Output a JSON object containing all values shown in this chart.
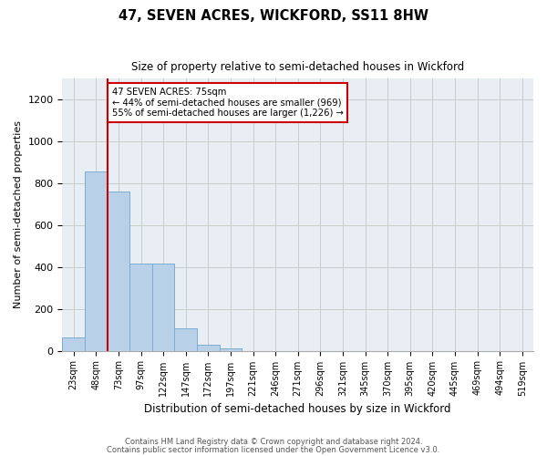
{
  "title": "47, SEVEN ACRES, WICKFORD, SS11 8HW",
  "subtitle": "Size of property relative to semi-detached houses in Wickford",
  "xlabel": "Distribution of semi-detached houses by size in Wickford",
  "ylabel": "Number of semi-detached properties",
  "categories": [
    "23sqm",
    "48sqm",
    "73sqm",
    "97sqm",
    "122sqm",
    "147sqm",
    "172sqm",
    "197sqm",
    "221sqm",
    "246sqm",
    "271sqm",
    "296sqm",
    "321sqm",
    "345sqm",
    "370sqm",
    "395sqm",
    "420sqm",
    "445sqm",
    "469sqm",
    "494sqm",
    "519sqm"
  ],
  "values": [
    65,
    855,
    760,
    415,
    415,
    105,
    28,
    12,
    0,
    0,
    0,
    0,
    0,
    0,
    0,
    0,
    0,
    0,
    0,
    0,
    0
  ],
  "bar_color": "#b8d0e8",
  "bar_edge_color": "#7aaed0",
  "annotation_text": "47 SEVEN ACRES: 75sqm\n← 44% of semi-detached houses are smaller (969)\n55% of semi-detached houses are larger (1,226) →",
  "annotation_box_color": "#ffffff",
  "annotation_box_edge": "#cc0000",
  "ylim": [
    0,
    1300
  ],
  "yticks": [
    0,
    200,
    400,
    600,
    800,
    1000,
    1200
  ],
  "grid_color": "#cccccc",
  "background_color": "#e8eef4",
  "footer1": "Contains HM Land Registry data © Crown copyright and database right 2024.",
  "footer2": "Contains public sector information licensed under the Open Government Licence v3.0."
}
